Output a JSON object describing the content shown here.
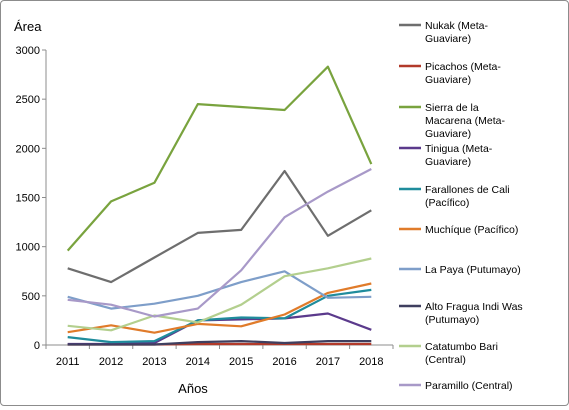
{
  "chart_data": {
    "type": "line",
    "ylabel": "Área",
    "xlabel": "Años",
    "x": [
      "2011",
      "2012",
      "2013",
      "2014",
      "2015",
      "2016",
      "2017",
      "2018"
    ],
    "ylim": [
      0,
      3000
    ],
    "yticks": [
      "0",
      "500",
      "1000",
      "1500",
      "2000",
      "2500",
      "3000"
    ],
    "grid": false,
    "legend_position": "right",
    "series": [
      {
        "name": "Nukak (Meta-Guaviare)",
        "legend_lines": [
          "Nukak (Meta-",
          "Guaviare)"
        ],
        "color": "#6e6e6e",
        "values": [
          780,
          640,
          890,
          1140,
          1170,
          1770,
          1110,
          1370
        ]
      },
      {
        "name": "Picachos (Meta-Guaviare)",
        "legend_lines": [
          "Picachos (Meta-",
          "Guaviare)"
        ],
        "color": "#b23a2a",
        "values": [
          5,
          5,
          5,
          10,
          10,
          10,
          10,
          10
        ]
      },
      {
        "name": "Sierra de la Macarena (Meta-Guaviare)",
        "legend_lines": [
          "Sierra de la",
          "Macarena (Meta-",
          "Guaviare)"
        ],
        "color": "#79a33e",
        "values": [
          960,
          1460,
          1650,
          2450,
          2420,
          2390,
          2830,
          1840
        ]
      },
      {
        "name": "Tinigua (Meta-Guaviare)",
        "legend_lines": [
          "Tinigua (Meta-",
          "Guaviare)"
        ],
        "color": "#5b3a8c",
        "values": [
          10,
          10,
          20,
          250,
          260,
          270,
          320,
          155
        ]
      },
      {
        "name": "Farallones de Cali (Pacífico)",
        "legend_lines": [
          "Farallones de Cali",
          "(Pacífico)"
        ],
        "color": "#1f8c9c",
        "values": [
          80,
          30,
          40,
          250,
          280,
          270,
          500,
          560
        ]
      },
      {
        "name": "Muchíque (Pacífico)",
        "legend_lines": [
          "Muchíque (Pacífico)"
        ],
        "color": "#e07b2a",
        "values": [
          130,
          200,
          125,
          215,
          190,
          310,
          530,
          625
        ]
      },
      {
        "name": "La Paya (Putumayo)",
        "legend_lines": [
          "La Paya (Putumayo)"
        ],
        "color": "#7e9ec9",
        "values": [
          490,
          370,
          420,
          500,
          640,
          750,
          480,
          490
        ]
      },
      {
        "name": "Alto Fragua Indi Was (Putumayo)",
        "legend_lines": [
          "Alto Fragua Indi Was",
          "(Putumayo)"
        ],
        "color": "#3f3f5f",
        "values": [
          5,
          5,
          5,
          30,
          40,
          20,
          40,
          40
        ]
      },
      {
        "name": "Catatumbo Bari (Central)",
        "legend_lines": [
          "Catatumbo  Bari",
          "(Central)"
        ],
        "color": "#b3cf8e",
        "values": [
          195,
          150,
          300,
          230,
          410,
          700,
          780,
          880
        ]
      },
      {
        "name": "Paramillo (Central)",
        "legend_lines": [
          "Paramillo (Central)"
        ],
        "color": "#a899c8",
        "values": [
          460,
          410,
          290,
          370,
          760,
          1300,
          1560,
          1790
        ]
      }
    ]
  }
}
